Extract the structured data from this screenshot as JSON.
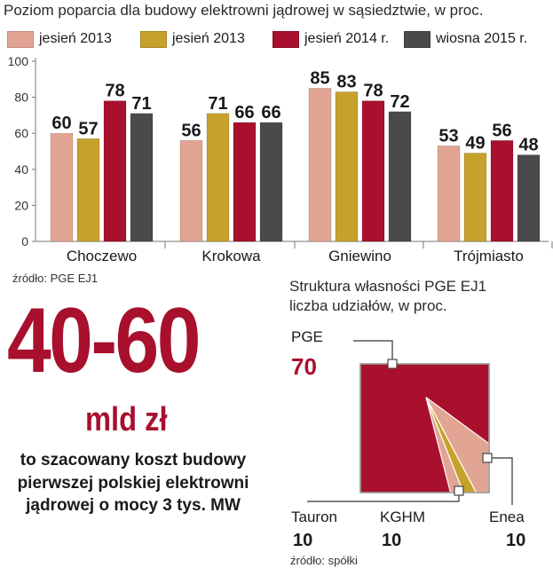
{
  "chart_data": [
    {
      "type": "bar",
      "title": "Poziom poparcia dla budowy elektrowni jądrowej w sąsiedztwie, w proc.",
      "categories": [
        "Choczewo",
        "Krokowa",
        "Gniewino",
        "Trójmiasto"
      ],
      "series": [
        {
          "name": "jesień 2013",
          "color": "#e2a593",
          "values": [
            60,
            56,
            85,
            53
          ]
        },
        {
          "name": "jesień 2013",
          "color": "#c6a12b",
          "values": [
            57,
            71,
            83,
            49
          ]
        },
        {
          "name": "jesień 2014 r.",
          "color": "#a8102e",
          "values": [
            78,
            66,
            78,
            56
          ]
        },
        {
          "name": "wiosna 2015 r.",
          "color": "#4a4a4c",
          "values": [
            71,
            66,
            72,
            48
          ]
        }
      ],
      "ylim": [
        0,
        100
      ],
      "yticks": [
        0,
        20,
        40,
        60,
        80,
        100
      ],
      "grid": false,
      "legend": "top",
      "source": "źródło: PGE EJ1"
    },
    {
      "type": "treemap",
      "title": "Struktura własności PGE EJ1",
      "subtitle": "liczba udziałów, w proc.",
      "shares": [
        {
          "name": "PGE",
          "value": 70,
          "color": "#a8102e"
        },
        {
          "name": "Tauron",
          "value": 10,
          "color": "#e2a593"
        },
        {
          "name": "KGHM",
          "value": 10,
          "color": "#c6a12b"
        },
        {
          "name": "Enea",
          "value": 10,
          "color": "#e2a593"
        }
      ],
      "source": "źródło: spółki"
    }
  ],
  "highlight": {
    "number": "40-60",
    "unit": "mld zł",
    "description": [
      "to szacowany koszt budowy",
      "pierwszej polskiej elektrowni",
      "jądrowej o mocy 3 tys. MW"
    ]
  }
}
